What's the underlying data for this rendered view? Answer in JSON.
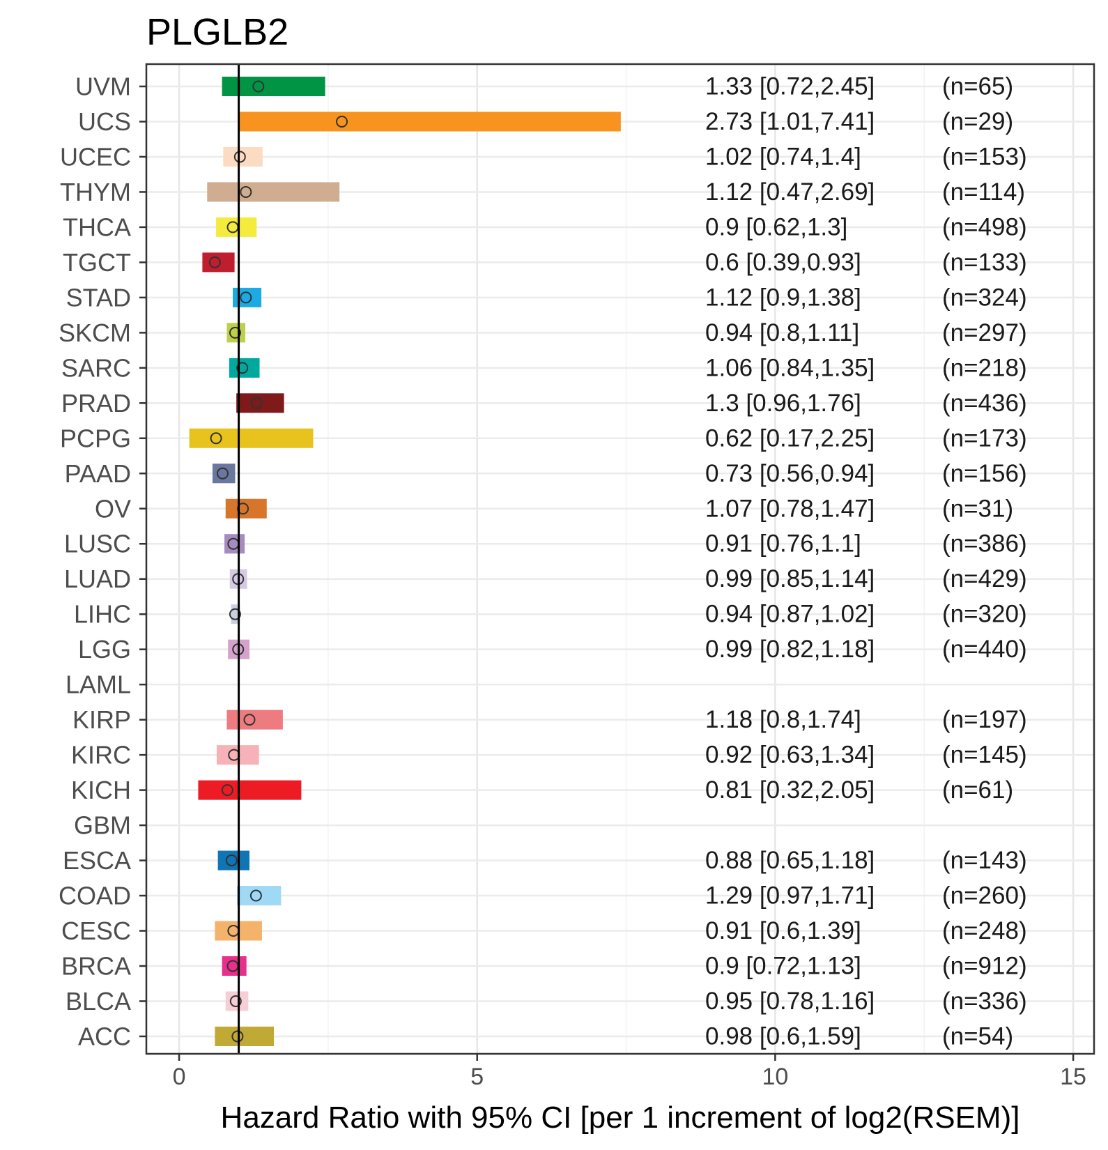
{
  "chart_data": {
    "type": "forest",
    "title": "PLGLB2",
    "xlabel": "Hazard Ratio with 95% CI [per 1 increment of log2(RSEM)]",
    "xlim": [
      -0.55,
      15.35
    ],
    "xticks": [
      0,
      5,
      10,
      15
    ],
    "reference_line": 1,
    "rows": [
      {
        "name": "UVM",
        "hr": 1.33,
        "lo": 0.72,
        "hi": 2.45,
        "label": "1.33 [0.72,2.45]",
        "n": "(n=65)",
        "color": "#009444"
      },
      {
        "name": "UCS",
        "hr": 2.73,
        "lo": 1.01,
        "hi": 7.41,
        "label": "2.73 [1.01,7.41]",
        "n": "(n=29)",
        "color": "#f7931e"
      },
      {
        "name": "UCEC",
        "hr": 1.02,
        "lo": 0.74,
        "hi": 1.4,
        "label": "1.02 [0.74,1.4]",
        "n": "(n=153)",
        "color": "#fbdcc2"
      },
      {
        "name": "THYM",
        "hr": 1.12,
        "lo": 0.47,
        "hi": 2.69,
        "label": "1.12 [0.47,2.69]",
        "n": "(n=114)",
        "color": "#d0ad90"
      },
      {
        "name": "THCA",
        "hr": 0.9,
        "lo": 0.62,
        "hi": 1.3,
        "label": "0.9 [0.62,1.3]",
        "n": "(n=498)",
        "color": "#f5eb3c"
      },
      {
        "name": "TGCT",
        "hr": 0.6,
        "lo": 0.39,
        "hi": 0.93,
        "label": "0.6 [0.39,0.93]",
        "n": "(n=133)",
        "color": "#be1e2d"
      },
      {
        "name": "STAD",
        "hr": 1.12,
        "lo": 0.9,
        "hi": 1.38,
        "label": "1.12 [0.9,1.38]",
        "n": "(n=324)",
        "color": "#1baae4"
      },
      {
        "name": "SKCM",
        "hr": 0.94,
        "lo": 0.8,
        "hi": 1.11,
        "label": "0.94 [0.8,1.11]",
        "n": "(n=297)",
        "color": "#bed049"
      },
      {
        "name": "SARC",
        "hr": 1.06,
        "lo": 0.84,
        "hi": 1.35,
        "label": "1.06 [0.84,1.35]",
        "n": "(n=218)",
        "color": "#00a99d"
      },
      {
        "name": "PRAD",
        "hr": 1.3,
        "lo": 0.96,
        "hi": 1.76,
        "label": "1.3 [0.96,1.76]",
        "n": "(n=436)",
        "color": "#7f1a1a"
      },
      {
        "name": "PCPG",
        "hr": 0.62,
        "lo": 0.17,
        "hi": 2.25,
        "label": "0.62 [0.17,2.25]",
        "n": "(n=173)",
        "color": "#e8c31e"
      },
      {
        "name": "PAAD",
        "hr": 0.73,
        "lo": 0.56,
        "hi": 0.94,
        "label": "0.73 [0.56,0.94]",
        "n": "(n=156)",
        "color": "#6a78a0"
      },
      {
        "name": "OV",
        "hr": 1.07,
        "lo": 0.78,
        "hi": 1.47,
        "label": "1.07 [0.78,1.47]",
        "n": "(n=31)",
        "color": "#d7762a"
      },
      {
        "name": "LUSC",
        "hr": 0.91,
        "lo": 0.76,
        "hi": 1.1,
        "label": "0.91 [0.76,1.1]",
        "n": "(n=386)",
        "color": "#a58cc0"
      },
      {
        "name": "LUAD",
        "hr": 0.99,
        "lo": 0.85,
        "hi": 1.14,
        "label": "0.99 [0.85,1.14]",
        "n": "(n=429)",
        "color": "#d5c9e3"
      },
      {
        "name": "LIHC",
        "hr": 0.94,
        "lo": 0.87,
        "hi": 1.02,
        "label": "0.94 [0.87,1.02]",
        "n": "(n=320)",
        "color": "#cccfe0"
      },
      {
        "name": "LGG",
        "hr": 0.99,
        "lo": 0.82,
        "hi": 1.18,
        "label": "0.99 [0.82,1.18]",
        "n": "(n=440)",
        "color": "#d6a2cc"
      },
      {
        "name": "LAML",
        "hr": null,
        "lo": null,
        "hi": null,
        "label": "",
        "n": "",
        "color": "#cccccc"
      },
      {
        "name": "KIRP",
        "hr": 1.18,
        "lo": 0.8,
        "hi": 1.74,
        "label": "1.18 [0.8,1.74]",
        "n": "(n=197)",
        "color": "#ee7b7f"
      },
      {
        "name": "KIRC",
        "hr": 0.92,
        "lo": 0.63,
        "hi": 1.34,
        "label": "0.92 [0.63,1.34]",
        "n": "(n=145)",
        "color": "#f7b2b7"
      },
      {
        "name": "KICH",
        "hr": 0.81,
        "lo": 0.32,
        "hi": 2.05,
        "label": "0.81 [0.32,2.05]",
        "n": "(n=61)",
        "color": "#ed1c24"
      },
      {
        "name": "GBM",
        "hr": null,
        "lo": null,
        "hi": null,
        "label": "",
        "n": "",
        "color": "#cccccc"
      },
      {
        "name": "ESCA",
        "hr": 0.88,
        "lo": 0.65,
        "hi": 1.18,
        "label": "0.88 [0.65,1.18]",
        "n": "(n=143)",
        "color": "#0f75b5"
      },
      {
        "name": "COAD",
        "hr": 1.29,
        "lo": 0.97,
        "hi": 1.71,
        "label": "1.29 [0.97,1.71]",
        "n": "(n=260)",
        "color": "#9fd9f6"
      },
      {
        "name": "CESC",
        "hr": 0.91,
        "lo": 0.6,
        "hi": 1.39,
        "label": "0.91 [0.6,1.39]",
        "n": "(n=248)",
        "color": "#f4b26b"
      },
      {
        "name": "BRCA",
        "hr": 0.9,
        "lo": 0.72,
        "hi": 1.13,
        "label": "0.9 [0.72,1.13]",
        "n": "(n=912)",
        "color": "#e82f8c"
      },
      {
        "name": "BLCA",
        "hr": 0.95,
        "lo": 0.78,
        "hi": 1.16,
        "label": "0.95 [0.78,1.16]",
        "n": "(n=336)",
        "color": "#f7ced6"
      },
      {
        "name": "ACC",
        "hr": 0.98,
        "lo": 0.6,
        "hi": 1.59,
        "label": "0.98 [0.6,1.59]",
        "n": "(n=54)",
        "color": "#c1a936"
      }
    ]
  }
}
